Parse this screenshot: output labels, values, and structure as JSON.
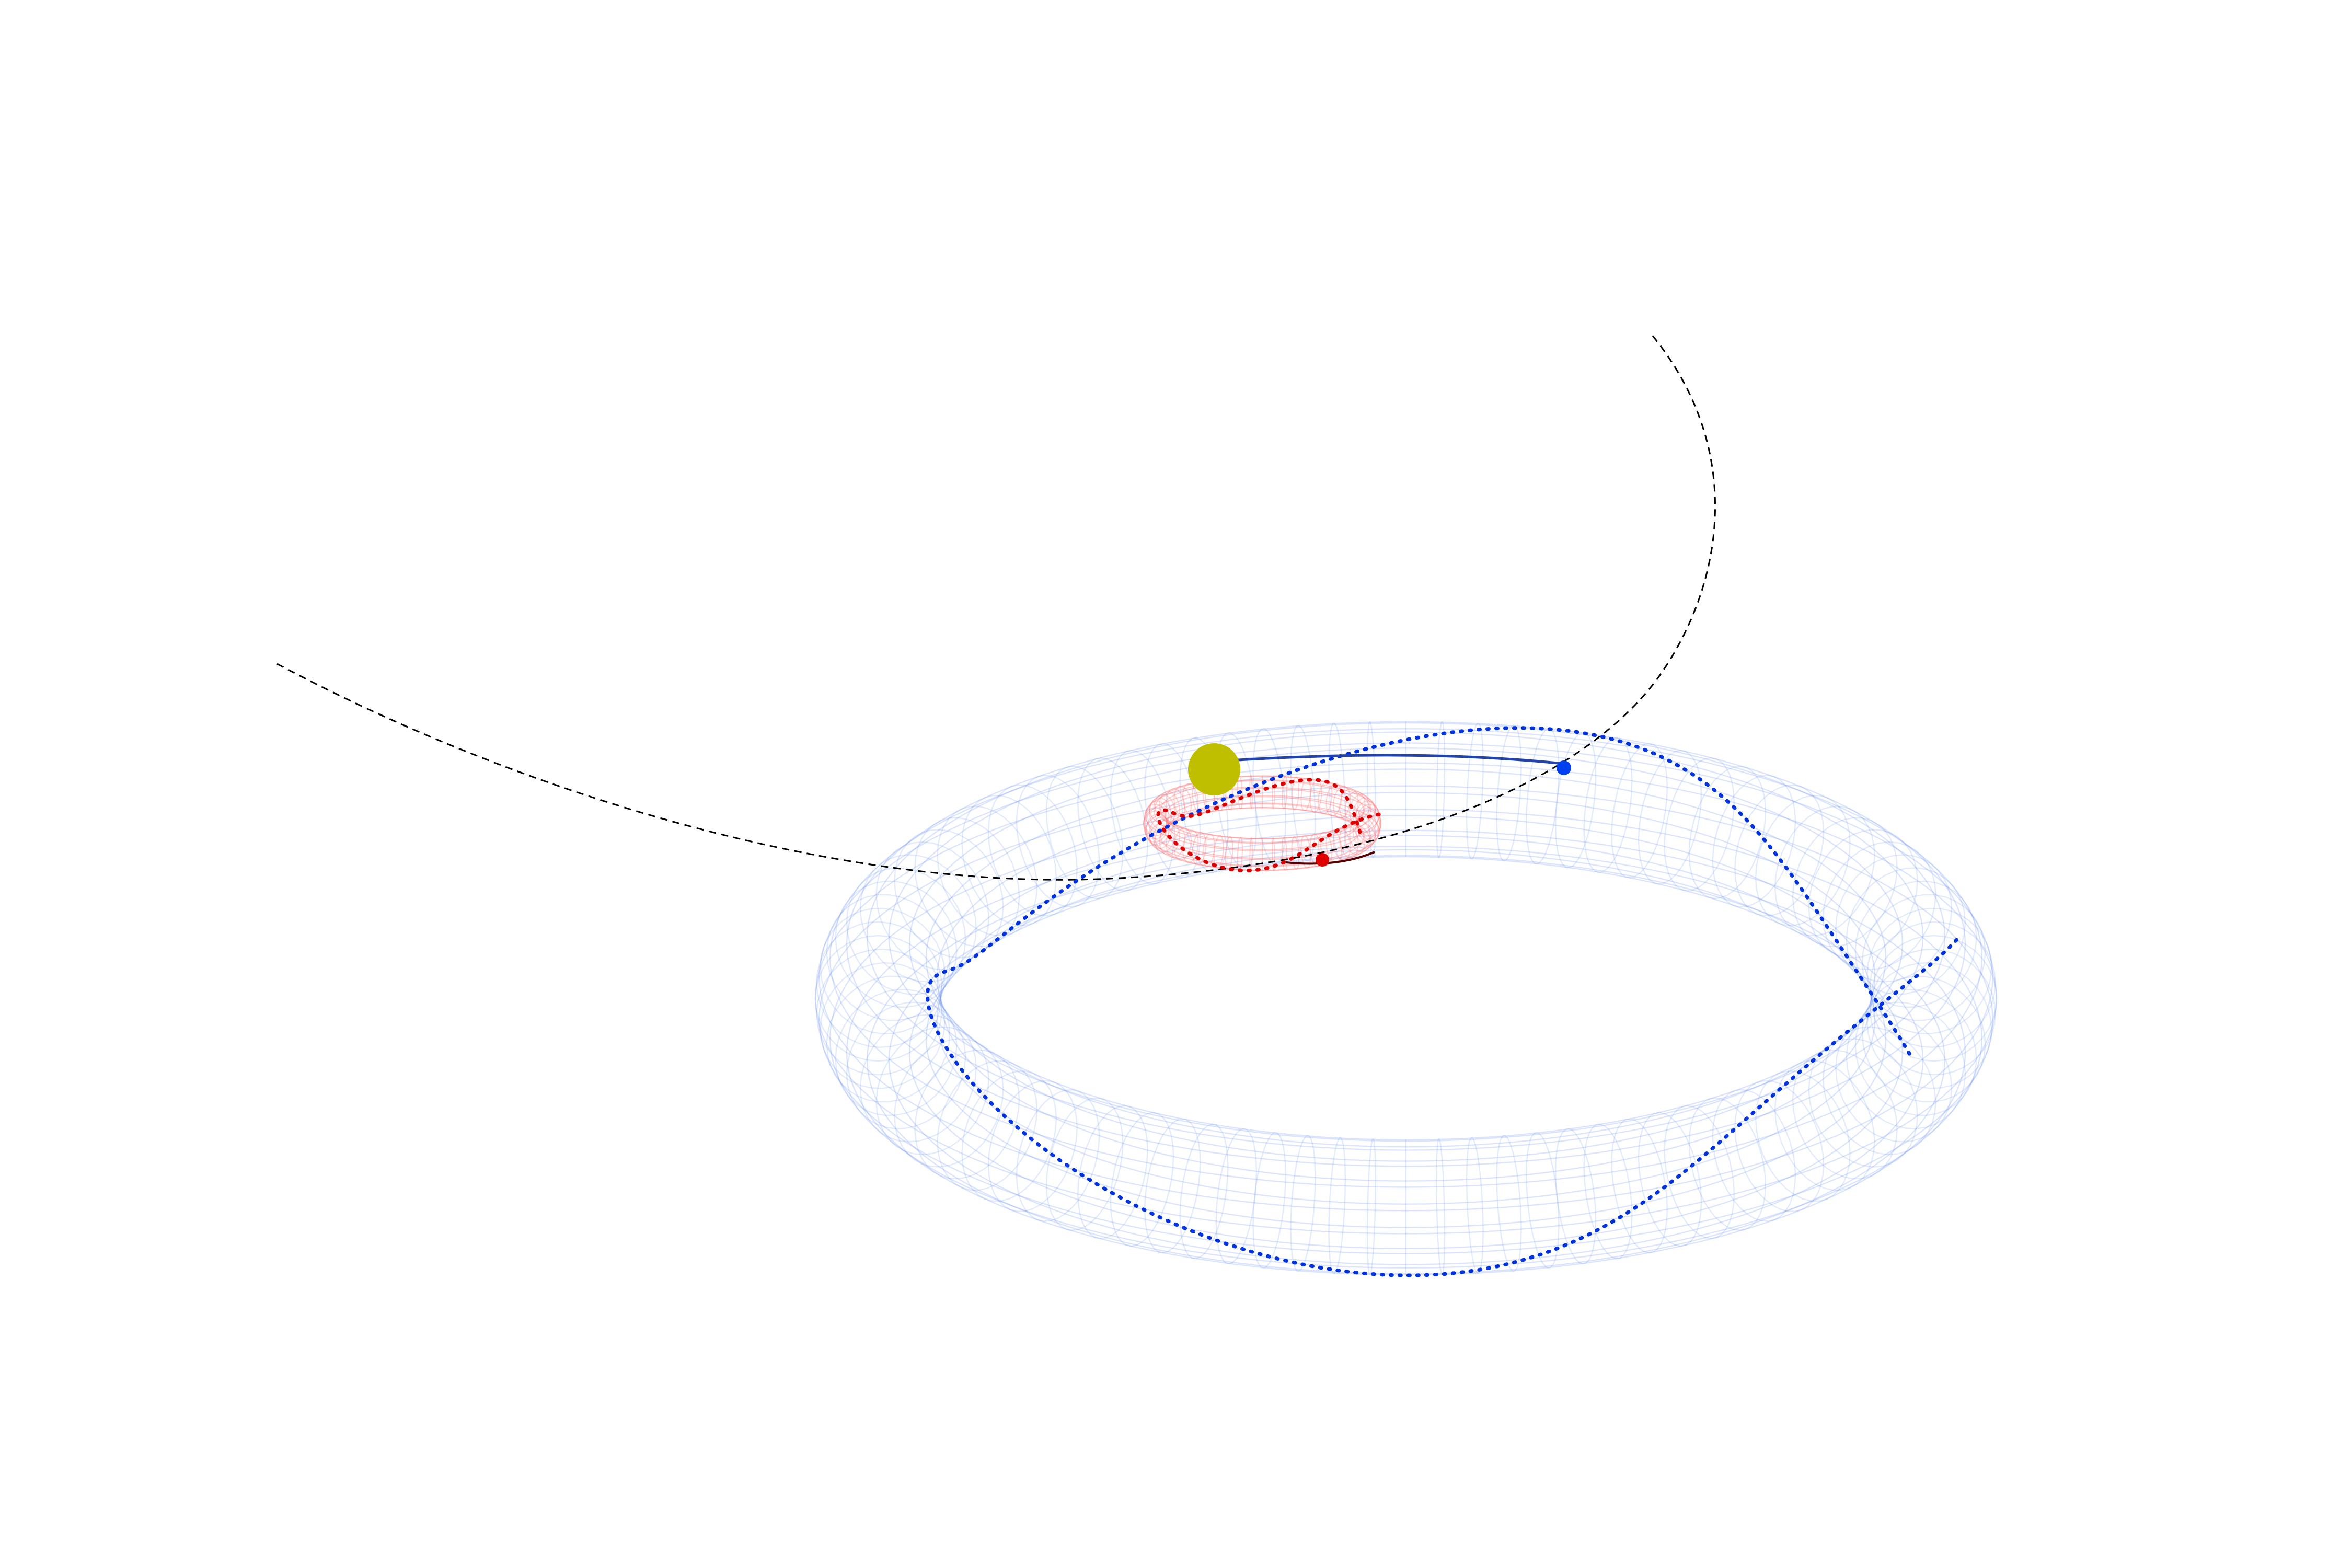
{
  "diagram": {
    "kind": "3D orbital diagram (no visible text)",
    "colors": {
      "background": "#ffffff",
      "central_body": "#bfbf00",
      "outer_torus_mesh": "#5b86f0",
      "outer_orbit": "#0033dd",
      "inner_torus_mesh": "#ff6a6a",
      "inner_orbit": "#dd0000",
      "reference_curve": "#000000"
    }
  }
}
